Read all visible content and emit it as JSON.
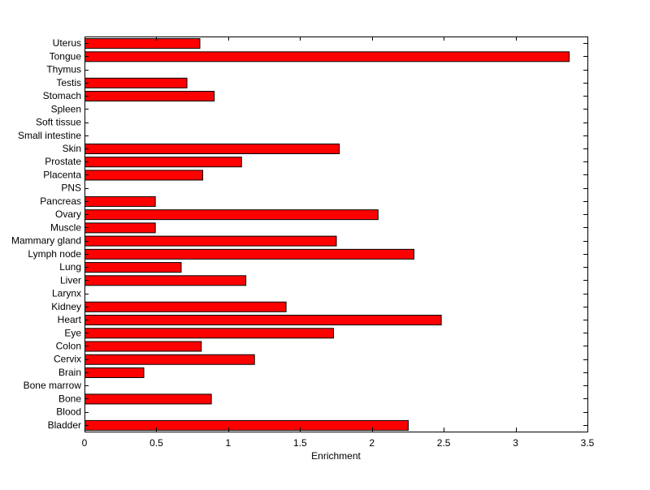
{
  "chart_data": {
    "type": "bar",
    "orientation": "horizontal",
    "title": "",
    "xlabel": "Enrichment",
    "ylabel": "",
    "xlim": [
      0,
      3.5
    ],
    "xticks": [
      0,
      0.5,
      1,
      1.5,
      2,
      2.5,
      3,
      3.5
    ],
    "xtick_labels": [
      "0",
      "0.5",
      "1",
      "1.5",
      "2",
      "2.5",
      "3",
      "3.5"
    ],
    "grid": false,
    "legend": "none",
    "bar_color": "#ff0000",
    "bar_edge_color": "#000000",
    "categories": [
      "Bladder",
      "Blood",
      "Bone",
      "Bone marrow",
      "Brain",
      "Cervix",
      "Colon",
      "Eye",
      "Heart",
      "Kidney",
      "Larynx",
      "Liver",
      "Lung",
      "Lymph node",
      "Mammary gland",
      "Muscle",
      "Ovary",
      "Pancreas",
      "PNS",
      "Placenta",
      "Prostate",
      "Skin",
      "Small intestine",
      "Soft tissue",
      "Spleen",
      "Stomach",
      "Testis",
      "Thymus",
      "Tongue",
      "Uterus"
    ],
    "values": [
      2.25,
      0,
      0.88,
      0,
      0.41,
      1.18,
      0.81,
      1.73,
      2.48,
      1.4,
      0,
      1.12,
      0.67,
      2.29,
      1.75,
      0.49,
      2.04,
      0.49,
      0,
      0.82,
      1.09,
      1.77,
      0,
      0,
      0,
      0.9,
      0.71,
      0,
      3.37,
      0.8
    ]
  }
}
